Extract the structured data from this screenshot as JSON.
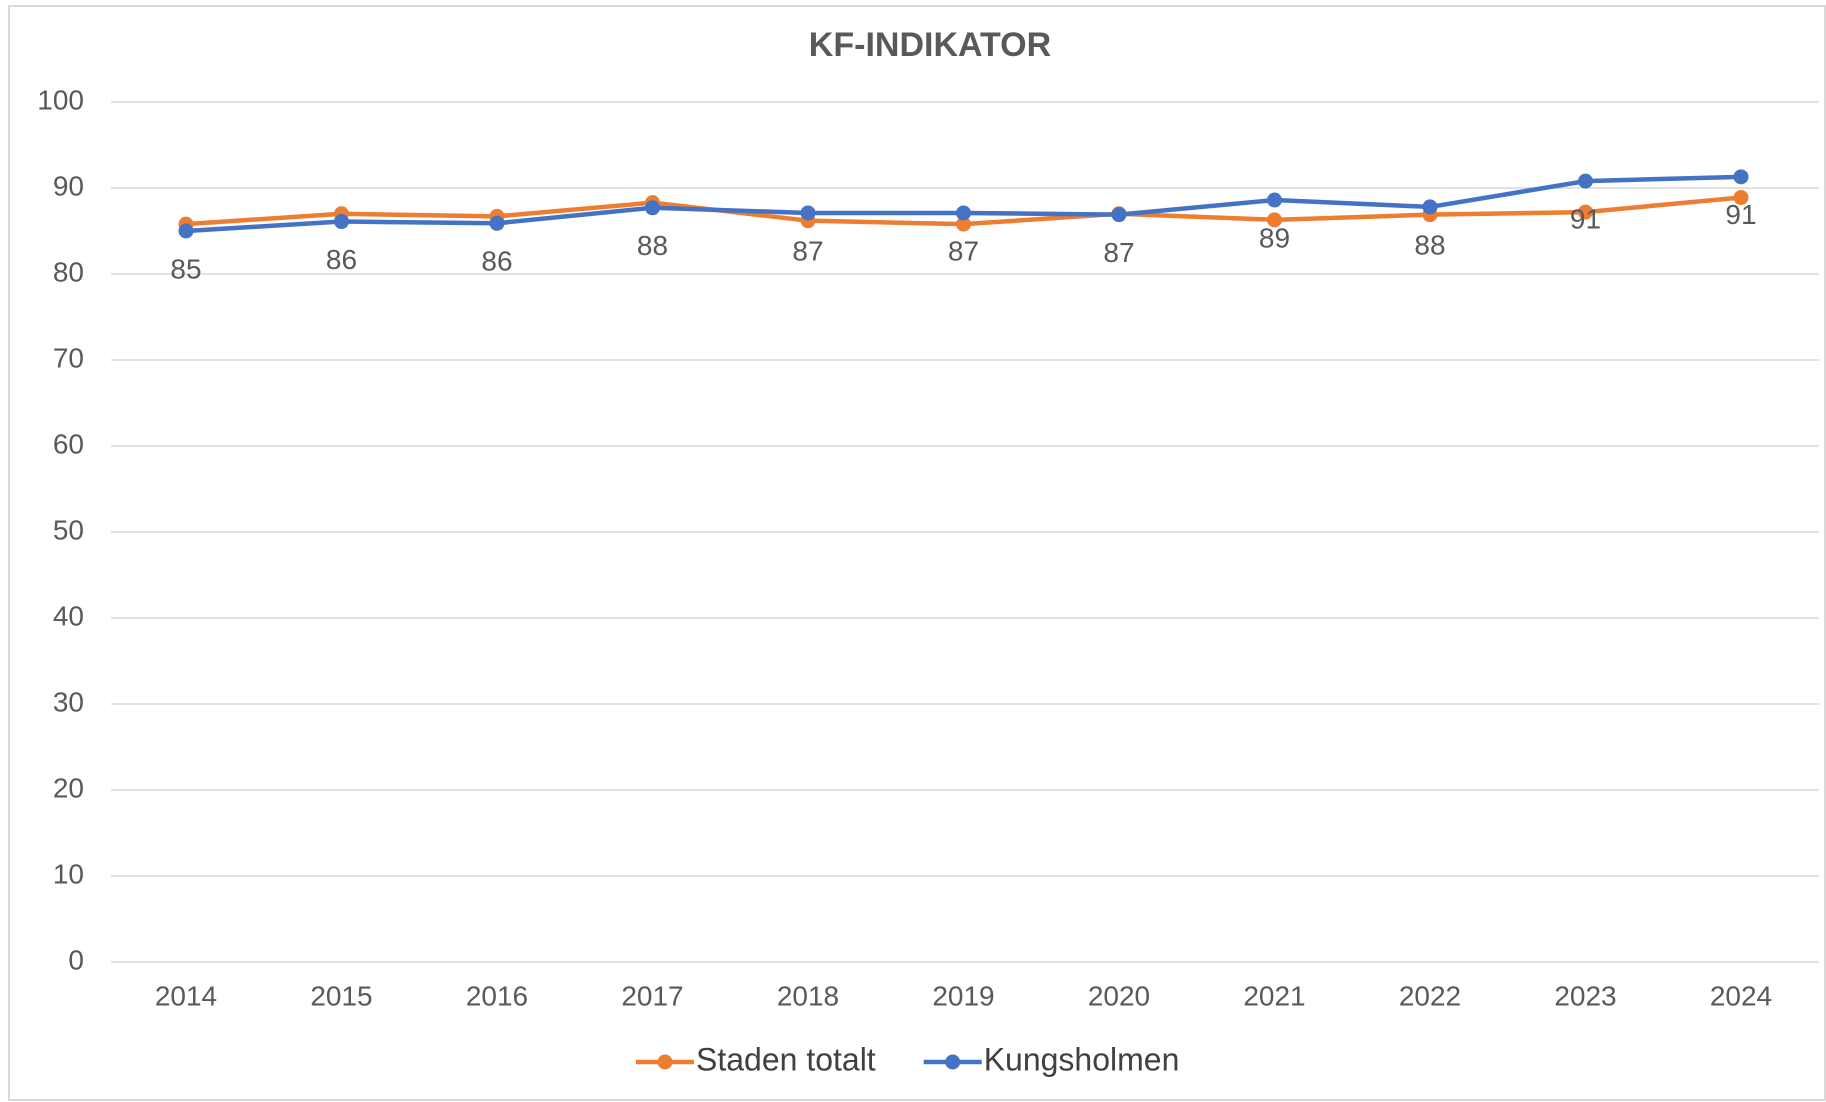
{
  "chart_data": {
    "type": "line",
    "title": "KF-INDIKATOR",
    "categories": [
      "2014",
      "2015",
      "2016",
      "2017",
      "2018",
      "2019",
      "2020",
      "2021",
      "2022",
      "2023",
      "2024"
    ],
    "series": [
      {
        "name": "Staden totalt",
        "color": "#ed7d31",
        "values": [
          85.8,
          87.0,
          86.7,
          88.3,
          86.2,
          85.8,
          87.0,
          86.3,
          86.9,
          87.2,
          88.9
        ]
      },
      {
        "name": "Kungsholmen",
        "color": "#4472c4",
        "values": [
          85.0,
          86.1,
          85.9,
          87.7,
          87.1,
          87.1,
          86.9,
          88.6,
          87.8,
          90.8,
          91.3
        ],
        "value_labels": [
          "85",
          "86",
          "86",
          "88",
          "87",
          "87",
          "87",
          "89",
          "88",
          "91",
          "91"
        ]
      }
    ],
    "ylim": [
      0,
      100
    ],
    "yticks": [
      0,
      10,
      20,
      30,
      40,
      50,
      60,
      70,
      80,
      90,
      100
    ],
    "grid": true,
    "legend": "bottom"
  }
}
